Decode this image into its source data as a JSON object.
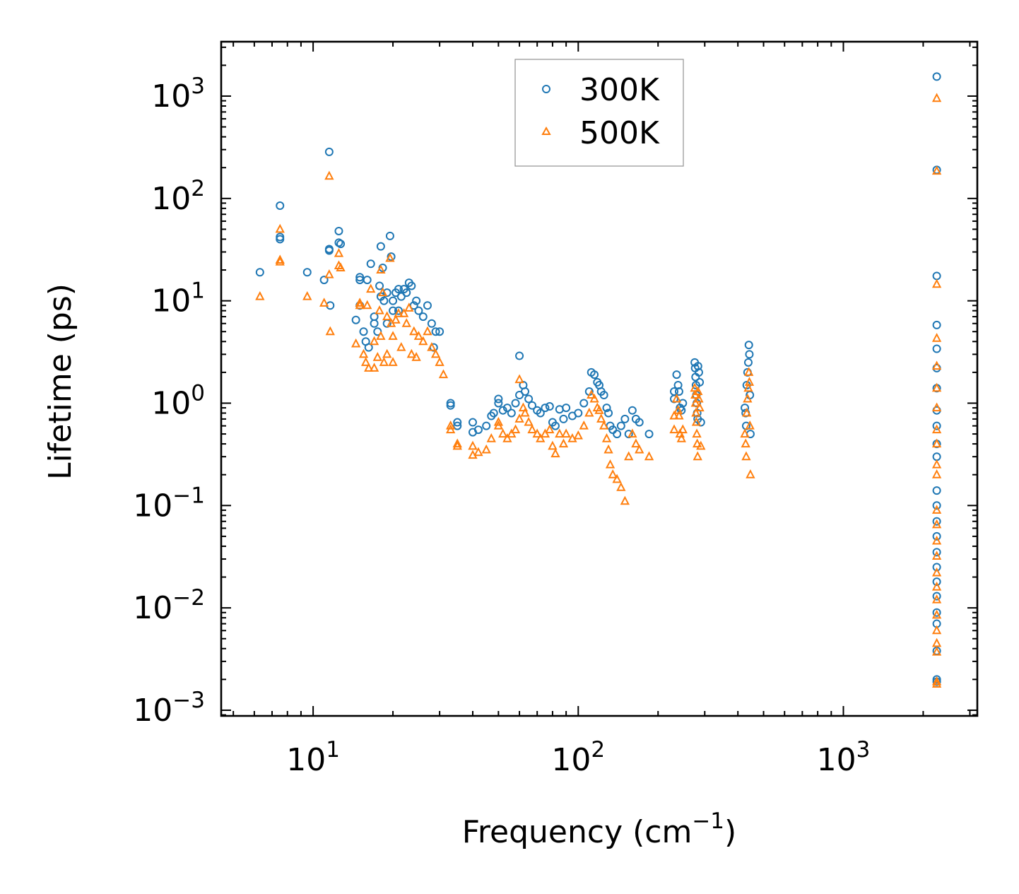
{
  "chart_data": {
    "type": "scatter",
    "xscale": "log",
    "yscale": "log",
    "xlim": [
      4.5,
      3200
    ],
    "ylim": [
      0.00088,
      3400
    ],
    "xlabel": "Frequency (cm",
    "xlabel_sup": "−1",
    "xlabel_close": ")",
    "ylabel": "Lifetime (ps)",
    "x_ticks": [
      {
        "value": 10,
        "base": "10",
        "exp": "1"
      },
      {
        "value": 100,
        "base": "10",
        "exp": "2"
      },
      {
        "value": 1000,
        "base": "10",
        "exp": "3"
      }
    ],
    "y_ticks": [
      {
        "value": 0.001,
        "base": "10",
        "exp": "−3"
      },
      {
        "value": 0.01,
        "base": "10",
        "exp": "−2"
      },
      {
        "value": 0.1,
        "base": "10",
        "exp": "−1"
      },
      {
        "value": 1,
        "base": "10",
        "exp": "0"
      },
      {
        "value": 10,
        "base": "10",
        "exp": "1"
      },
      {
        "value": 100,
        "base": "10",
        "exp": "2"
      },
      {
        "value": 1000,
        "base": "10",
        "exp": "3"
      }
    ],
    "legend_position": "top-center",
    "series": [
      {
        "name": "300K",
        "marker": "circle",
        "color": "#1f77b4",
        "points": [
          [
            6.3,
            19
          ],
          [
            7.5,
            85
          ],
          [
            7.5,
            42
          ],
          [
            7.5,
            40
          ],
          [
            9.5,
            19
          ],
          [
            11,
            16
          ],
          [
            11.5,
            285
          ],
          [
            11.5,
            32
          ],
          [
            11.5,
            31
          ],
          [
            11.6,
            9
          ],
          [
            12.5,
            48
          ],
          [
            12.5,
            37
          ],
          [
            12.7,
            36
          ],
          [
            14.5,
            6.5
          ],
          [
            15,
            17
          ],
          [
            15,
            16
          ],
          [
            15,
            9
          ],
          [
            15.5,
            5
          ],
          [
            15.8,
            4
          ],
          [
            16,
            16
          ],
          [
            16.2,
            3.5
          ],
          [
            16.5,
            23
          ],
          [
            17,
            7
          ],
          [
            17,
            6
          ],
          [
            17.5,
            5
          ],
          [
            17.8,
            14
          ],
          [
            18,
            34
          ],
          [
            18,
            11
          ],
          [
            18.3,
            21
          ],
          [
            18.5,
            10
          ],
          [
            19,
            12
          ],
          [
            19,
            6
          ],
          [
            19.5,
            43
          ],
          [
            19.7,
            27
          ],
          [
            20,
            10
          ],
          [
            20,
            8
          ],
          [
            20.5,
            12
          ],
          [
            21,
            13
          ],
          [
            21,
            8
          ],
          [
            21.5,
            11
          ],
          [
            22,
            13
          ],
          [
            22.5,
            12
          ],
          [
            23,
            15
          ],
          [
            23.5,
            14
          ],
          [
            24,
            9
          ],
          [
            24.5,
            10
          ],
          [
            25,
            8
          ],
          [
            26,
            7
          ],
          [
            27,
            9
          ],
          [
            28,
            6
          ],
          [
            29,
            5
          ],
          [
            30,
            5
          ],
          [
            28.5,
            3.5
          ],
          [
            33,
            1.0
          ],
          [
            33,
            0.95
          ],
          [
            35,
            0.65
          ],
          [
            35,
            0.6
          ],
          [
            40,
            0.65
          ],
          [
            40,
            0.52
          ],
          [
            42,
            0.55
          ],
          [
            45,
            0.6
          ],
          [
            47,
            0.75
          ],
          [
            48,
            0.8
          ],
          [
            50,
            1.1
          ],
          [
            50,
            1.0
          ],
          [
            52,
            0.85
          ],
          [
            54,
            0.9
          ],
          [
            56,
            0.8
          ],
          [
            58,
            1.0
          ],
          [
            60,
            1.2
          ],
          [
            60,
            2.9
          ],
          [
            62,
            1.5
          ],
          [
            63,
            1.3
          ],
          [
            65,
            1.1
          ],
          [
            67,
            0.95
          ],
          [
            70,
            0.85
          ],
          [
            72,
            0.8
          ],
          [
            75,
            0.9
          ],
          [
            78,
            0.93
          ],
          [
            80,
            0.65
          ],
          [
            82,
            0.6
          ],
          [
            85,
            0.87
          ],
          [
            88,
            0.7
          ],
          [
            90,
            0.9
          ],
          [
            95,
            0.75
          ],
          [
            100,
            0.8
          ],
          [
            105,
            1.0
          ],
          [
            110,
            1.3
          ],
          [
            112,
            2.0
          ],
          [
            115,
            1.9
          ],
          [
            118,
            1.6
          ],
          [
            120,
            1.5
          ],
          [
            122,
            1.3
          ],
          [
            125,
            1.2
          ],
          [
            128,
            0.9
          ],
          [
            130,
            0.8
          ],
          [
            132,
            0.6
          ],
          [
            135,
            0.55
          ],
          [
            140,
            0.5
          ],
          [
            145,
            0.6
          ],
          [
            150,
            0.7
          ],
          [
            155,
            0.5
          ],
          [
            160,
            0.85
          ],
          [
            165,
            0.7
          ],
          [
            170,
            0.65
          ],
          [
            185,
            0.5
          ],
          [
            230,
            1.3
          ],
          [
            230,
            1.1
          ],
          [
            235,
            1.9
          ],
          [
            238,
            1.5
          ],
          [
            240,
            1.3
          ],
          [
            242,
            0.9
          ],
          [
            245,
            0.85
          ],
          [
            248,
            1.0
          ],
          [
            275,
            2.5
          ],
          [
            276,
            2.2
          ],
          [
            277,
            1.8
          ],
          [
            278,
            1.5
          ],
          [
            279,
            1.2
          ],
          [
            280,
            1.0
          ],
          [
            281,
            0.8
          ],
          [
            282,
            0.7
          ],
          [
            283,
            2.3
          ],
          [
            285,
            2.0
          ],
          [
            287,
            1.6
          ],
          [
            290,
            0.65
          ],
          [
            425,
            0.9
          ],
          [
            428,
            0.8
          ],
          [
            430,
            0.6
          ],
          [
            432,
            1.5
          ],
          [
            435,
            2.0
          ],
          [
            438,
            2.5
          ],
          [
            440,
            3.7
          ],
          [
            442,
            3.0
          ],
          [
            444,
            1.2
          ],
          [
            446,
            0.5
          ],
          [
            2250,
            1550
          ],
          [
            2250,
            190
          ],
          [
            2250,
            17.5
          ],
          [
            2250,
            5.8
          ],
          [
            2250,
            3.4
          ],
          [
            2250,
            2.2
          ],
          [
            2250,
            1.4
          ],
          [
            2250,
            0.85
          ],
          [
            2250,
            0.6
          ],
          [
            2250,
            0.4
          ],
          [
            2250,
            0.3
          ],
          [
            2250,
            0.14
          ],
          [
            2250,
            0.1
          ],
          [
            2250,
            0.07
          ],
          [
            2250,
            0.05
          ],
          [
            2250,
            0.035
          ],
          [
            2250,
            0.025
          ],
          [
            2250,
            0.018
          ],
          [
            2250,
            0.013
          ],
          [
            2250,
            0.009
          ],
          [
            2250,
            0.007
          ],
          [
            2250,
            0.0038
          ],
          [
            2250,
            0.002
          ],
          [
            2250,
            0.0019
          ]
        ]
      },
      {
        "name": "500K",
        "marker": "triangle",
        "color": "#ff7f0e",
        "points": [
          [
            6.3,
            11
          ],
          [
            7.5,
            50
          ],
          [
            7.5,
            25
          ],
          [
            7.5,
            24
          ],
          [
            9.5,
            11
          ],
          [
            11,
            9.5
          ],
          [
            11.5,
            165
          ],
          [
            11.5,
            18
          ],
          [
            11.6,
            5
          ],
          [
            12.5,
            29
          ],
          [
            12.5,
            22
          ],
          [
            12.7,
            21
          ],
          [
            14.5,
            3.8
          ],
          [
            15,
            9.5
          ],
          [
            15,
            9
          ],
          [
            15.5,
            3
          ],
          [
            15.8,
            2.5
          ],
          [
            16,
            9
          ],
          [
            16.2,
            2.2
          ],
          [
            16.5,
            13
          ],
          [
            17,
            4
          ],
          [
            17,
            2.2
          ],
          [
            17.5,
            2.8
          ],
          [
            17.8,
            8
          ],
          [
            18,
            20
          ],
          [
            18,
            4.5
          ],
          [
            18.3,
            12
          ],
          [
            18.5,
            2.5
          ],
          [
            19,
            7
          ],
          [
            19,
            3
          ],
          [
            19.5,
            26
          ],
          [
            19.7,
            6
          ],
          [
            20,
            4.5
          ],
          [
            20,
            2.5
          ],
          [
            20.5,
            6.5
          ],
          [
            21,
            7.5
          ],
          [
            21.5,
            3.5
          ],
          [
            22,
            7.5
          ],
          [
            22.5,
            6
          ],
          [
            23,
            8.5
          ],
          [
            23.5,
            3
          ],
          [
            24,
            5
          ],
          [
            24.5,
            2.8
          ],
          [
            25,
            4.5
          ],
          [
            26,
            4
          ],
          [
            27,
            5
          ],
          [
            28,
            3.5
          ],
          [
            29,
            3
          ],
          [
            30,
            2.5
          ],
          [
            31,
            1.9
          ],
          [
            33,
            0.6
          ],
          [
            33,
            0.55
          ],
          [
            35,
            0.4
          ],
          [
            35,
            0.38
          ],
          [
            40,
            0.38
          ],
          [
            40,
            0.31
          ],
          [
            42,
            0.33
          ],
          [
            45,
            0.35
          ],
          [
            47,
            0.45
          ],
          [
            50,
            0.65
          ],
          [
            50,
            0.6
          ],
          [
            52,
            0.5
          ],
          [
            54,
            0.45
          ],
          [
            56,
            0.5
          ],
          [
            58,
            0.55
          ],
          [
            60,
            0.7
          ],
          [
            60,
            1.7
          ],
          [
            62,
            0.9
          ],
          [
            63,
            0.8
          ],
          [
            65,
            0.65
          ],
          [
            67,
            0.55
          ],
          [
            70,
            0.5
          ],
          [
            72,
            0.45
          ],
          [
            75,
            0.5
          ],
          [
            78,
            0.55
          ],
          [
            80,
            0.38
          ],
          [
            82,
            0.32
          ],
          [
            85,
            0.5
          ],
          [
            88,
            0.4
          ],
          [
            90,
            0.5
          ],
          [
            95,
            0.45
          ],
          [
            100,
            0.48
          ],
          [
            105,
            0.6
          ],
          [
            110,
            0.8
          ],
          [
            112,
            1.2
          ],
          [
            115,
            1.1
          ],
          [
            118,
            0.9
          ],
          [
            120,
            0.85
          ],
          [
            122,
            0.7
          ],
          [
            125,
            0.6
          ],
          [
            128,
            0.45
          ],
          [
            130,
            0.35
          ],
          [
            132,
            0.25
          ],
          [
            135,
            0.2
          ],
          [
            140,
            0.18
          ],
          [
            145,
            0.15
          ],
          [
            150,
            0.11
          ],
          [
            155,
            0.3
          ],
          [
            160,
            0.5
          ],
          [
            165,
            0.4
          ],
          [
            170,
            0.35
          ],
          [
            185,
            0.3
          ],
          [
            230,
            0.75
          ],
          [
            230,
            0.55
          ],
          [
            235,
            1.1
          ],
          [
            238,
            0.85
          ],
          [
            240,
            0.75
          ],
          [
            242,
            0.5
          ],
          [
            245,
            0.45
          ],
          [
            248,
            0.55
          ],
          [
            275,
            1.4
          ],
          [
            276,
            1.2
          ],
          [
            277,
            1.0
          ],
          [
            278,
            0.8
          ],
          [
            279,
            0.65
          ],
          [
            280,
            0.5
          ],
          [
            281,
            0.4
          ],
          [
            282,
            0.3
          ],
          [
            283,
            1.3
          ],
          [
            285,
            1.1
          ],
          [
            287,
            0.9
          ],
          [
            290,
            0.38
          ],
          [
            425,
            0.5
          ],
          [
            428,
            0.4
          ],
          [
            430,
            0.3
          ],
          [
            432,
            0.8
          ],
          [
            435,
            1.1
          ],
          [
            438,
            1.4
          ],
          [
            440,
            2.0
          ],
          [
            442,
            1.6
          ],
          [
            444,
            0.6
          ],
          [
            446,
            0.2
          ],
          [
            2250,
            950
          ],
          [
            2250,
            185
          ],
          [
            2250,
            14.5
          ],
          [
            2250,
            4.3
          ],
          [
            2250,
            2.3
          ],
          [
            2250,
            1.4
          ],
          [
            2250,
            0.9
          ],
          [
            2250,
            0.55
          ],
          [
            2250,
            0.4
          ],
          [
            2250,
            0.25
          ],
          [
            2250,
            0.2
          ],
          [
            2250,
            0.09
          ],
          [
            2250,
            0.065
          ],
          [
            2250,
            0.045
          ],
          [
            2250,
            0.032
          ],
          [
            2250,
            0.022
          ],
          [
            2250,
            0.016
          ],
          [
            2250,
            0.012
          ],
          [
            2250,
            0.0085
          ],
          [
            2250,
            0.006
          ],
          [
            2250,
            0.0045
          ],
          [
            2250,
            0.0037
          ],
          [
            2250,
            0.0019
          ],
          [
            2250,
            0.0018
          ]
        ]
      }
    ]
  }
}
